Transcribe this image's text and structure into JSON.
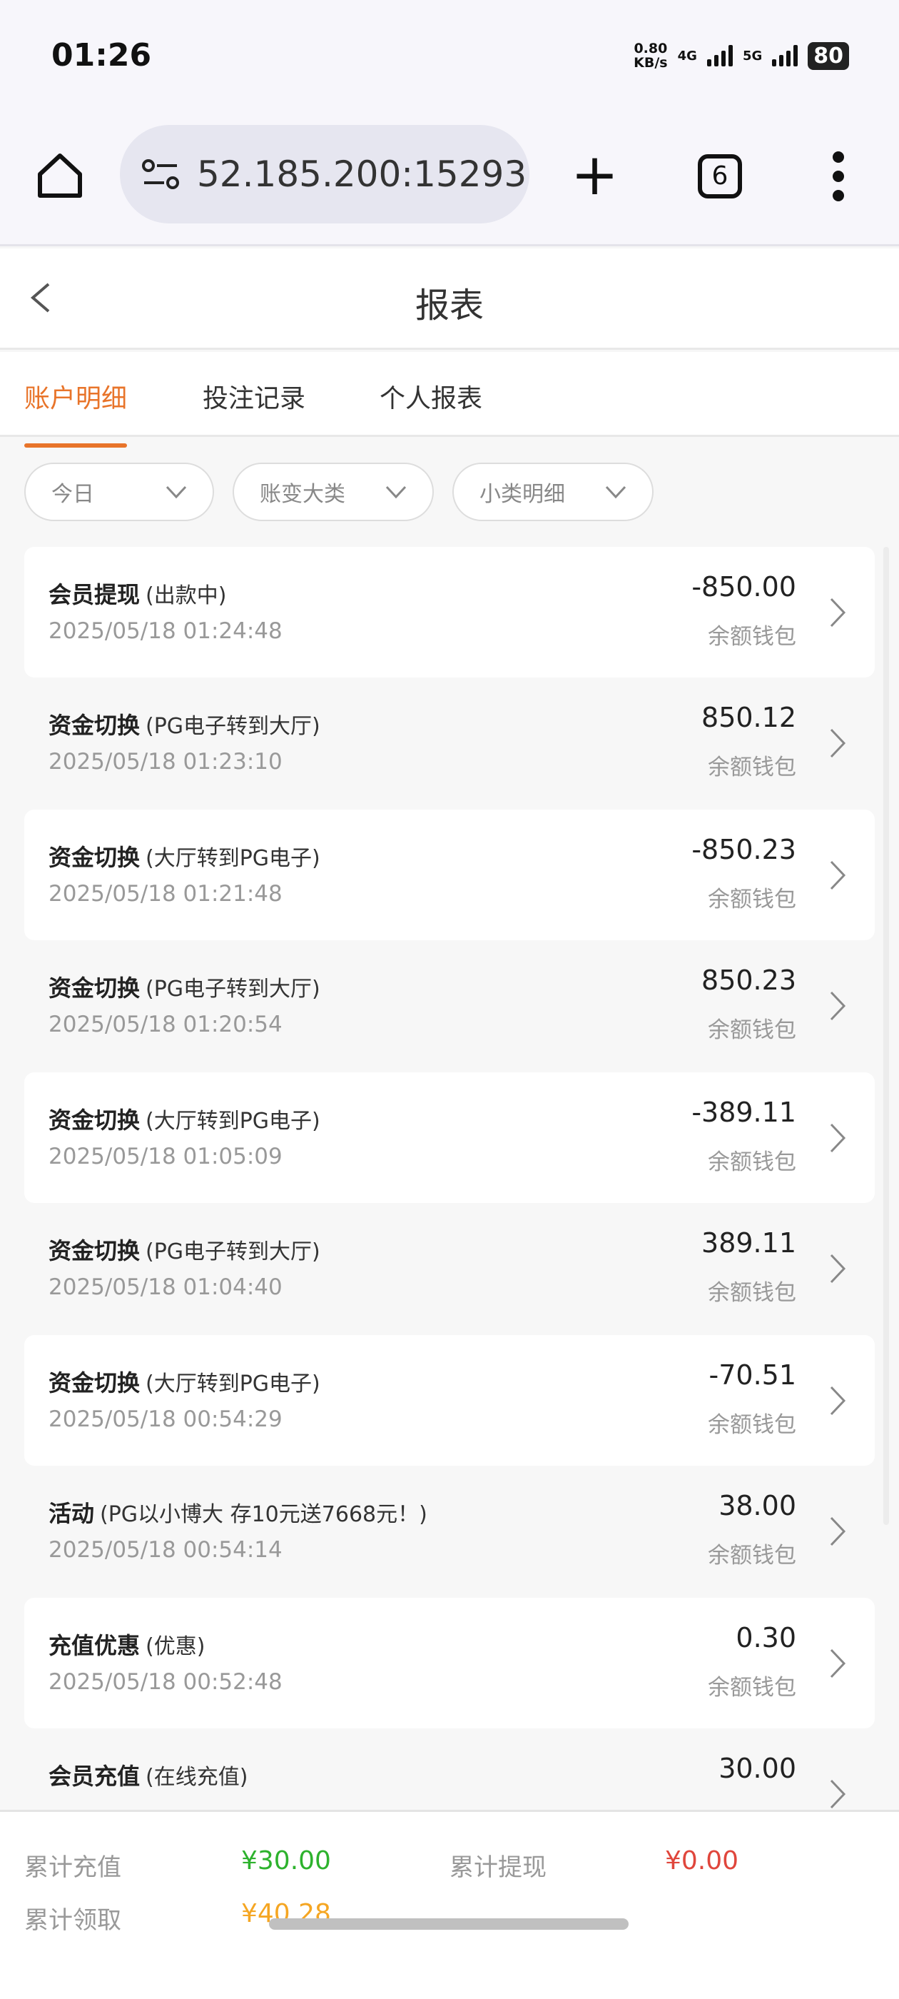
{
  "status": {
    "time": "01:26",
    "speed": "0.80",
    "speed_unit": "KB/s",
    "net1": "4G",
    "net2": "5G",
    "battery": "80"
  },
  "browser": {
    "url": "52.185.200:15293",
    "tab_count": "6"
  },
  "header": {
    "title": "报表"
  },
  "tabs": [
    {
      "label": "账户明细",
      "active": true
    },
    {
      "label": "投注记录"
    },
    {
      "label": "个人报表"
    }
  ],
  "filters": [
    {
      "label": "今日"
    },
    {
      "label": "账变大类"
    },
    {
      "label": "小类明细"
    }
  ],
  "records": [
    {
      "type": "会员提现",
      "detail": "(出款中)",
      "time": "2025/05/18 01:24:48",
      "amount": "-850.00",
      "wallet": "余额钱包"
    },
    {
      "type": "资金切换",
      "detail": "(PG电子转到大厅)",
      "time": "2025/05/18 01:23:10",
      "amount": "850.12",
      "wallet": "余额钱包"
    },
    {
      "type": "资金切换",
      "detail": "(大厅转到PG电子)",
      "time": "2025/05/18 01:21:48",
      "amount": "-850.23",
      "wallet": "余额钱包"
    },
    {
      "type": "资金切换",
      "detail": "(PG电子转到大厅)",
      "time": "2025/05/18 01:20:54",
      "amount": "850.23",
      "wallet": "余额钱包"
    },
    {
      "type": "资金切换",
      "detail": "(大厅转到PG电子)",
      "time": "2025/05/18 01:05:09",
      "amount": "-389.11",
      "wallet": "余额钱包"
    },
    {
      "type": "资金切换",
      "detail": "(PG电子转到大厅)",
      "time": "2025/05/18 01:04:40",
      "amount": "389.11",
      "wallet": "余额钱包"
    },
    {
      "type": "资金切换",
      "detail": "(大厅转到PG电子)",
      "time": "2025/05/18 00:54:29",
      "amount": "-70.51",
      "wallet": "余额钱包"
    },
    {
      "type": "活动",
      "detail": "(PG以小博大 存10元送7668元！)",
      "time": "2025/05/18 00:54:14",
      "amount": "38.00",
      "wallet": "余额钱包"
    },
    {
      "type": "充值优惠",
      "detail": "(优惠)",
      "time": "2025/05/18 00:52:48",
      "amount": "0.30",
      "wallet": "余额钱包"
    },
    {
      "type": "会员充值",
      "detail": "(在线充值)",
      "amount": "30.00"
    }
  ],
  "summary": {
    "recharge_label": "累计充值",
    "recharge_value": "¥30.00",
    "withdraw_label": "累计提现",
    "withdraw_value": "¥0.00",
    "claim_label": "累计领取",
    "claim_value": "¥40.28"
  },
  "colors": {
    "accent": "#e8742a",
    "green": "#2db22d",
    "red": "#e0463c",
    "orange": "#f5a623"
  }
}
